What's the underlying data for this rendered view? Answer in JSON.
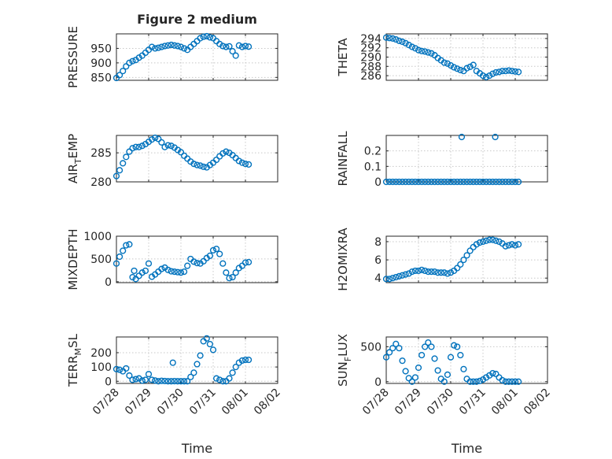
{
  "figure": {
    "title": "Figure 2 medium",
    "marker_color": "#0072BD",
    "xlabel": "Time",
    "xticks": [
      "07/28",
      "07/29",
      "07/30",
      "07/31",
      "08/01",
      "08/02"
    ]
  },
  "chart_data": [
    {
      "id": "pressure",
      "type": "scatter",
      "panel": [
        0,
        0
      ],
      "ylabel_main": "PRESSURE",
      "ylabel_sub": "",
      "ylim": [
        840,
        1000
      ],
      "yticks": [
        850,
        900,
        950
      ],
      "x": [
        0.0,
        0.1,
        0.2,
        0.3,
        0.4,
        0.5,
        0.6,
        0.7,
        0.8,
        0.9,
        1.0,
        1.1,
        1.2,
        1.3,
        1.4,
        1.5,
        1.6,
        1.7,
        1.8,
        1.9,
        2.0,
        2.1,
        2.2,
        2.3,
        2.4,
        2.5,
        2.6,
        2.7,
        2.8,
        2.9,
        3.0,
        3.1,
        3.2,
        3.3,
        3.4,
        3.5,
        3.6,
        3.7,
        3.8,
        3.9,
        4.0,
        4.1
      ],
      "y": [
        848,
        858,
        872,
        888,
        900,
        906,
        910,
        918,
        925,
        935,
        945,
        955,
        950,
        952,
        955,
        958,
        960,
        962,
        960,
        958,
        955,
        950,
        945,
        955,
        965,
        975,
        985,
        990,
        992,
        988,
        985,
        975,
        965,
        958,
        955,
        957,
        940,
        925,
        960,
        955,
        958,
        956
      ]
    },
    {
      "id": "theta",
      "type": "scatter",
      "panel": [
        0,
        1
      ],
      "ylabel_main": "THETA",
      "ylabel_sub": "",
      "ylim": [
        285,
        295
      ],
      "yticks": [
        286,
        288,
        290,
        292,
        294
      ],
      "x": [
        0.0,
        0.1,
        0.2,
        0.3,
        0.4,
        0.5,
        0.6,
        0.7,
        0.8,
        0.9,
        1.0,
        1.1,
        1.2,
        1.3,
        1.4,
        1.5,
        1.6,
        1.7,
        1.8,
        1.9,
        2.0,
        2.1,
        2.2,
        2.3,
        2.4,
        2.5,
        2.6,
        2.7,
        2.8,
        2.9,
        3.0,
        3.1,
        3.2,
        3.3,
        3.4,
        3.5,
        3.6,
        3.7,
        3.8,
        3.9,
        4.0,
        4.1
      ],
      "y": [
        294.2,
        294.1,
        294.0,
        293.8,
        293.5,
        293.3,
        293.0,
        292.6,
        292.2,
        291.9,
        291.5,
        291.3,
        291.2,
        291.0,
        290.8,
        290.4,
        289.8,
        289.3,
        288.8,
        288.6,
        288.2,
        287.8,
        287.5,
        287.2,
        287.0,
        287.6,
        287.9,
        288.3,
        287.0,
        286.5,
        286.0,
        285.7,
        286.0,
        286.4,
        286.7,
        286.8,
        287.0,
        287.0,
        287.1,
        287.0,
        286.9,
        286.8
      ]
    },
    {
      "id": "air_temp",
      "type": "scatter",
      "panel": [
        1,
        0
      ],
      "ylabel_main": "AIR",
      "ylabel_sub": "T",
      "ylabel_tail": "EMP",
      "ylim": [
        280,
        288
      ],
      "yticks": [
        280,
        285
      ],
      "x": [
        0.0,
        0.1,
        0.2,
        0.3,
        0.4,
        0.5,
        0.6,
        0.7,
        0.8,
        0.9,
        1.0,
        1.1,
        1.2,
        1.3,
        1.4,
        1.5,
        1.6,
        1.7,
        1.8,
        1.9,
        2.0,
        2.1,
        2.2,
        2.3,
        2.4,
        2.5,
        2.6,
        2.7,
        2.8,
        2.9,
        3.0,
        3.1,
        3.2,
        3.3,
        3.4,
        3.5,
        3.6,
        3.7,
        3.8,
        3.9,
        4.0,
        4.1
      ],
      "y": [
        281.0,
        282.0,
        283.2,
        284.3,
        285.2,
        285.8,
        286.0,
        286.0,
        286.2,
        286.5,
        286.9,
        287.3,
        287.6,
        287.4,
        286.8,
        286.0,
        286.3,
        286.2,
        285.9,
        285.5,
        285.1,
        284.5,
        284.0,
        283.5,
        283.1,
        282.9,
        282.8,
        282.6,
        282.5,
        282.9,
        283.3,
        283.8,
        284.4,
        284.9,
        285.2,
        285.0,
        284.6,
        284.1,
        283.6,
        283.3,
        283.1,
        283.0
      ]
    },
    {
      "id": "rainfall",
      "type": "scatter",
      "panel": [
        1,
        1
      ],
      "ylabel_main": "RAINFALL",
      "ylabel_sub": "",
      "ylim": [
        0,
        0.3
      ],
      "yticks": [
        0,
        0.1,
        0.2
      ],
      "x": [
        0.0,
        0.1,
        0.2,
        0.3,
        0.4,
        0.5,
        0.6,
        0.7,
        0.8,
        0.9,
        1.0,
        1.1,
        1.2,
        1.3,
        1.4,
        1.5,
        1.6,
        1.7,
        1.8,
        1.9,
        2.0,
        2.1,
        2.2,
        2.3,
        2.4,
        2.5,
        2.6,
        2.7,
        2.8,
        2.9,
        3.0,
        3.1,
        3.2,
        3.3,
        3.4,
        3.5,
        3.6,
        3.7,
        3.8,
        3.9,
        4.0,
        4.1,
        2.34,
        3.38
      ],
      "y": [
        0,
        0,
        0,
        0,
        0,
        0,
        0,
        0,
        0,
        0,
        0,
        0,
        0,
        0,
        0,
        0,
        0,
        0,
        0,
        0,
        0,
        0,
        0,
        0,
        0,
        0,
        0,
        0,
        0,
        0,
        0,
        0,
        0,
        0,
        0,
        0,
        0,
        0,
        0,
        0,
        0,
        0,
        0.29,
        0.29
      ]
    },
    {
      "id": "mixdepth",
      "type": "scatter",
      "panel": [
        2,
        0
      ],
      "ylabel_main": "MIXDEPTH",
      "ylabel_sub": "",
      "ylim": [
        -20,
        1000
      ],
      "yticks": [
        0,
        500,
        1000
      ],
      "x": [
        0.0,
        0.1,
        0.2,
        0.3,
        0.4,
        0.5,
        0.55,
        0.6,
        0.7,
        0.8,
        0.9,
        1.0,
        1.1,
        1.2,
        1.3,
        1.4,
        1.5,
        1.6,
        1.7,
        1.8,
        1.9,
        2.0,
        2.1,
        2.2,
        2.3,
        2.4,
        2.5,
        2.6,
        2.7,
        2.8,
        2.9,
        3.0,
        3.1,
        3.2,
        3.3,
        3.4,
        3.5,
        3.6,
        3.7,
        3.8,
        3.9,
        4.0,
        4.1
      ],
      "y": [
        400,
        550,
        680,
        800,
        820,
        100,
        240,
        60,
        130,
        200,
        240,
        400,
        110,
        160,
        220,
        280,
        310,
        260,
        230,
        220,
        210,
        200,
        220,
        350,
        500,
        440,
        410,
        400,
        450,
        520,
        570,
        690,
        720,
        610,
        400,
        200,
        80,
        100,
        200,
        300,
        350,
        420,
        430
      ]
    },
    {
      "id": "h2omixra",
      "type": "scatter",
      "panel": [
        2,
        1
      ],
      "ylabel_main": "H2OMIXRA",
      "ylabel_sub": "",
      "ylim": [
        3.5,
        8.6
      ],
      "yticks": [
        4,
        6,
        8
      ],
      "x": [
        0.0,
        0.1,
        0.2,
        0.3,
        0.4,
        0.5,
        0.6,
        0.7,
        0.8,
        0.9,
        1.0,
        1.1,
        1.2,
        1.3,
        1.4,
        1.5,
        1.6,
        1.7,
        1.8,
        1.9,
        2.0,
        2.1,
        2.2,
        2.3,
        2.4,
        2.5,
        2.6,
        2.7,
        2.8,
        2.9,
        3.0,
        3.1,
        3.2,
        3.3,
        3.4,
        3.5,
        3.6,
        3.7,
        3.8,
        3.9,
        4.0,
        4.1
      ],
      "y": [
        3.9,
        3.9,
        4.0,
        4.1,
        4.2,
        4.3,
        4.4,
        4.5,
        4.7,
        4.8,
        4.8,
        4.9,
        4.8,
        4.7,
        4.7,
        4.7,
        4.6,
        4.6,
        4.6,
        4.5,
        4.6,
        4.8,
        5.1,
        5.5,
        6.0,
        6.5,
        7.0,
        7.4,
        7.7,
        7.9,
        8.0,
        8.1,
        8.2,
        8.2,
        8.1,
        8.0,
        7.8,
        7.5,
        7.6,
        7.7,
        7.6,
        7.7
      ]
    },
    {
      "id": "terr_msl",
      "type": "scatter",
      "panel": [
        3,
        0
      ],
      "ylabel_main": "TERR",
      "ylabel_sub": "M",
      "ylabel_tail": "SL",
      "ylim": [
        -15,
        310
      ],
      "yticks": [
        0,
        100,
        200
      ],
      "x": [
        0.0,
        0.1,
        0.2,
        0.3,
        0.4,
        0.5,
        0.6,
        0.7,
        0.8,
        0.9,
        1.0,
        1.1,
        1.2,
        1.3,
        1.4,
        1.5,
        1.6,
        1.7,
        1.8,
        1.9,
        2.0,
        2.1,
        2.2,
        2.3,
        2.4,
        2.5,
        2.6,
        2.7,
        2.8,
        2.9,
        3.0,
        3.1,
        3.2,
        3.3,
        3.4,
        3.5,
        3.6,
        3.7,
        3.8,
        3.9,
        4.0,
        4.1,
        1.75
      ],
      "y": [
        85,
        80,
        70,
        90,
        40,
        10,
        15,
        20,
        5,
        10,
        50,
        10,
        5,
        0,
        3,
        2,
        0,
        0,
        1,
        0,
        0,
        0,
        0,
        30,
        60,
        120,
        180,
        280,
        300,
        260,
        220,
        20,
        10,
        0,
        0,
        20,
        60,
        100,
        130,
        145,
        150,
        150,
        130
      ]
    },
    {
      "id": "sun_flux",
      "type": "scatter",
      "panel": [
        3,
        1
      ],
      "ylabel_main": "SUN",
      "ylabel_sub": "F",
      "ylabel_tail": "LUX",
      "ylim": [
        -25,
        640
      ],
      "yticks": [
        0,
        500
      ],
      "x": [
        0.0,
        0.1,
        0.2,
        0.3,
        0.4,
        0.5,
        0.6,
        0.7,
        0.8,
        0.9,
        1.0,
        1.1,
        1.2,
        1.3,
        1.4,
        1.5,
        1.6,
        1.7,
        1.8,
        1.9,
        2.0,
        2.1,
        2.2,
        2.3,
        2.4,
        2.5,
        2.6,
        2.7,
        2.8,
        2.9,
        3.0,
        3.1,
        3.2,
        3.3,
        3.4,
        3.5,
        3.6,
        3.7,
        3.8,
        3.9,
        4.0,
        4.1
      ],
      "y": [
        350,
        420,
        480,
        540,
        480,
        300,
        150,
        50,
        0,
        60,
        200,
        380,
        500,
        560,
        500,
        330,
        160,
        40,
        0,
        100,
        350,
        520,
        500,
        380,
        180,
        40,
        0,
        0,
        0,
        10,
        30,
        60,
        90,
        120,
        110,
        60,
        20,
        0,
        0,
        0,
        0,
        0
      ]
    }
  ]
}
